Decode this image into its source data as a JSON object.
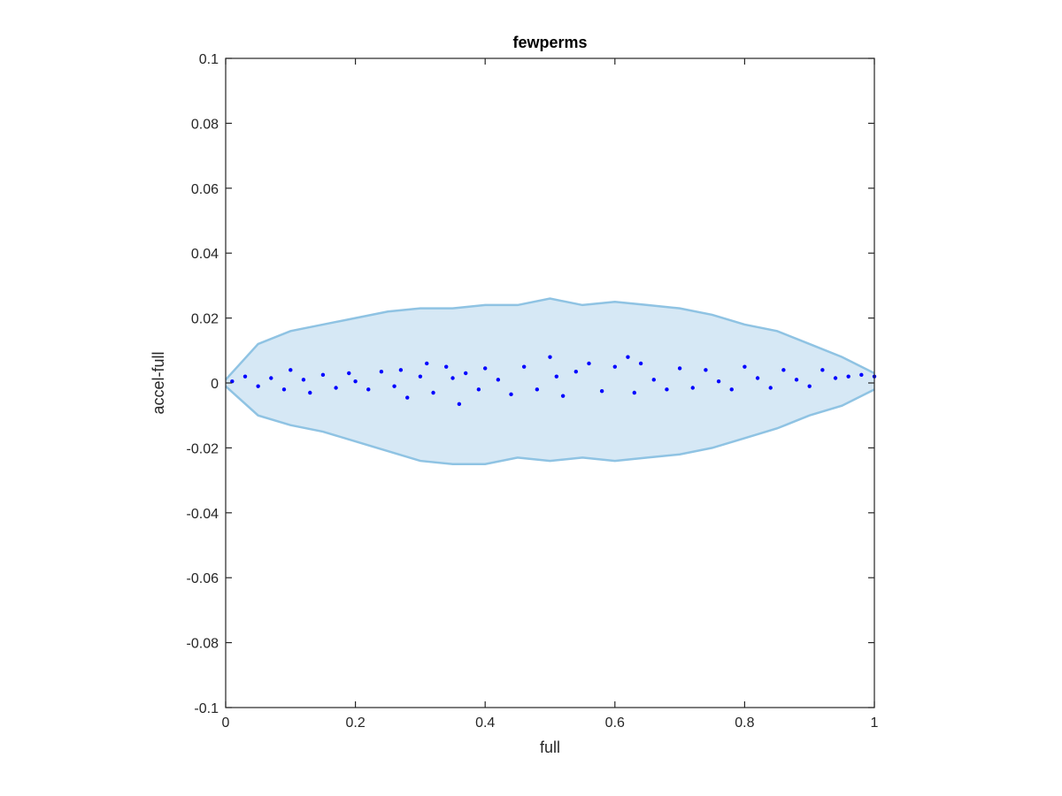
{
  "chart_data": {
    "type": "scatter",
    "title": "fewperms",
    "xlabel": "full",
    "ylabel": "accel-full",
    "xlim": [
      0,
      1
    ],
    "ylim": [
      -0.1,
      0.1
    ],
    "xticks": [
      0,
      0.2,
      0.4,
      0.6,
      0.8,
      1
    ],
    "xtick_labels": [
      "0",
      "0.2",
      "0.4",
      "0.6",
      "0.8",
      "1"
    ],
    "yticks": [
      -0.1,
      -0.08,
      -0.06,
      -0.04,
      -0.02,
      0,
      0.02,
      0.04,
      0.06,
      0.08,
      0.1
    ],
    "ytick_labels": [
      "-0.1",
      "-0.08",
      "-0.06",
      "-0.04",
      "-0.02",
      "0",
      "0.02",
      "0.04",
      "0.06",
      "0.08",
      "0.1"
    ],
    "grid": false,
    "colors": {
      "band_fill": "#d6e8f5",
      "band_edge": "#8fc3e3",
      "points": "#0000ff",
      "axes": "#262626"
    },
    "band": {
      "x": [
        0,
        0.05,
        0.1,
        0.15,
        0.2,
        0.25,
        0.3,
        0.35,
        0.4,
        0.45,
        0.5,
        0.55,
        0.6,
        0.65,
        0.7,
        0.75,
        0.8,
        0.85,
        0.9,
        0.95,
        1
      ],
      "upper": [
        0.001,
        0.012,
        0.016,
        0.018,
        0.02,
        0.022,
        0.023,
        0.023,
        0.024,
        0.024,
        0.026,
        0.024,
        0.025,
        0.024,
        0.023,
        0.021,
        0.018,
        0.016,
        0.012,
        0.008,
        0.003
      ],
      "lower": [
        -0.001,
        -0.01,
        -0.013,
        -0.015,
        -0.018,
        -0.021,
        -0.024,
        -0.025,
        -0.025,
        -0.023,
        -0.024,
        -0.023,
        -0.024,
        -0.023,
        -0.022,
        -0.02,
        -0.017,
        -0.014,
        -0.01,
        -0.007,
        -0.002
      ]
    },
    "series": [
      {
        "x": [
          0.01,
          0.03,
          0.05,
          0.07,
          0.09,
          0.1,
          0.12,
          0.13,
          0.15,
          0.17,
          0.19,
          0.2,
          0.22,
          0.24,
          0.26,
          0.27,
          0.28,
          0.3,
          0.31,
          0.32,
          0.34,
          0.35,
          0.36,
          0.37,
          0.39,
          0.4,
          0.42,
          0.44,
          0.46,
          0.48,
          0.5,
          0.51,
          0.52,
          0.54,
          0.56,
          0.58,
          0.6,
          0.62,
          0.63,
          0.64,
          0.66,
          0.68,
          0.7,
          0.72,
          0.74,
          0.76,
          0.78,
          0.8,
          0.82,
          0.84,
          0.86,
          0.88,
          0.9,
          0.92,
          0.94,
          0.96,
          0.98,
          1.0
        ],
        "y": [
          0.0005,
          0.002,
          -0.001,
          0.0015,
          -0.002,
          0.004,
          0.001,
          -0.003,
          0.0025,
          -0.0015,
          0.003,
          0.0005,
          -0.002,
          0.0035,
          -0.001,
          0.004,
          -0.0045,
          0.002,
          0.006,
          -0.003,
          0.005,
          0.0015,
          -0.0065,
          0.003,
          -0.002,
          0.0045,
          0.001,
          -0.0035,
          0.005,
          -0.002,
          0.008,
          0.002,
          -0.004,
          0.0035,
          0.006,
          -0.0025,
          0.005,
          0.008,
          -0.003,
          0.006,
          0.001,
          -0.002,
          0.0045,
          -0.0015,
          0.004,
          0.0005,
          -0.002,
          0.005,
          0.0015,
          -0.0015,
          0.004,
          0.001,
          -0.001,
          0.004,
          0.0015,
          0.002,
          0.0025,
          0.002
        ]
      }
    ]
  }
}
